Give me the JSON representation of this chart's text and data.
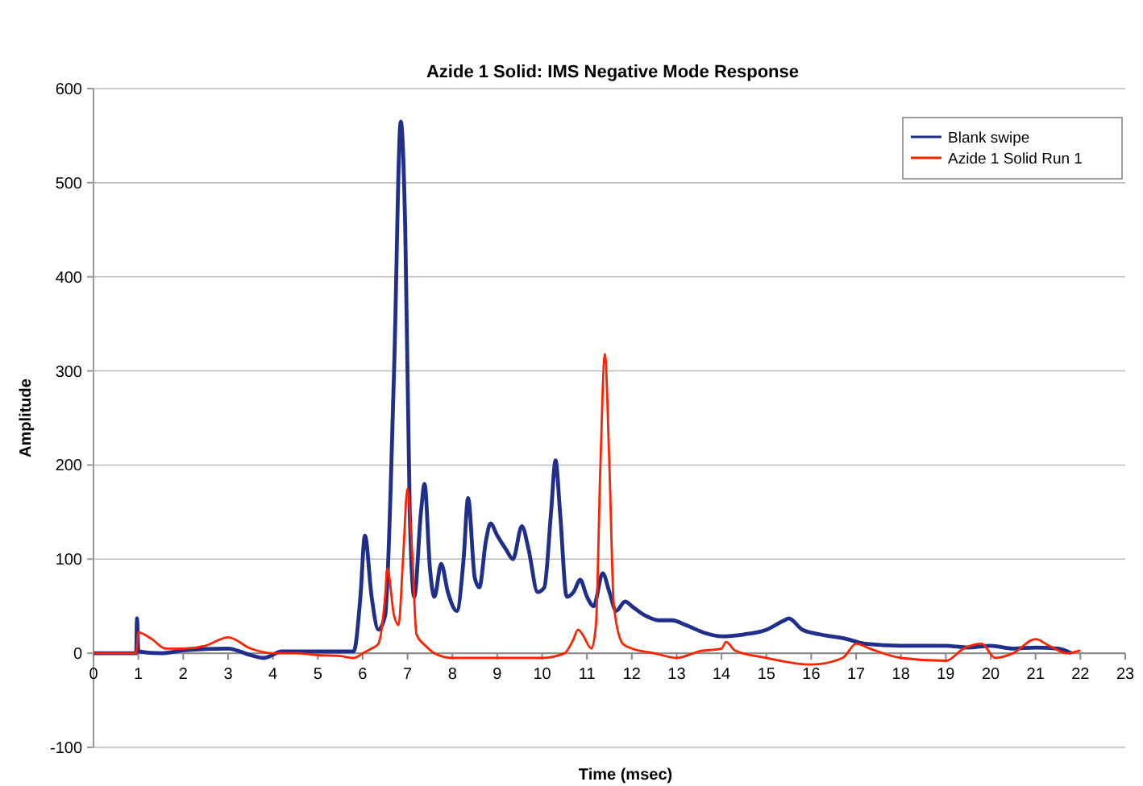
{
  "chart_data": {
    "type": "line",
    "title": "Azide 1 Solid: IMS Negative Mode Response",
    "xlabel": "Time (msec)",
    "ylabel": "Amplitude",
    "xlim": [
      0,
      23
    ],
    "ylim": [
      -100,
      600
    ],
    "xticks": [
      0,
      1,
      2,
      3,
      4,
      5,
      6,
      7,
      8,
      9,
      10,
      11,
      12,
      13,
      14,
      15,
      16,
      17,
      18,
      19,
      20,
      21,
      22,
      23
    ],
    "yticks": [
      -100,
      0,
      100,
      200,
      300,
      400,
      500,
      600
    ],
    "grid": "y",
    "legend": "top right",
    "marker": "none",
    "line_style": "solid",
    "series": [
      {
        "name": "Blank swipe",
        "color": "#1f2f8a",
        "x": [
          0,
          0.95,
          0.97,
          1.0,
          1.5,
          2,
          3,
          3.5,
          3.8,
          4.2,
          5,
          5.8,
          5.95,
          6.05,
          6.2,
          6.35,
          6.5,
          6.7,
          6.85,
          6.95,
          7.05,
          7.15,
          7.3,
          7.38,
          7.5,
          7.6,
          7.75,
          7.9,
          8.1,
          8.25,
          8.35,
          8.5,
          8.6,
          8.75,
          8.85,
          9.0,
          9.2,
          9.35,
          9.55,
          9.7,
          9.9,
          10.05,
          10.2,
          10.3,
          10.4,
          10.55,
          10.7,
          10.85,
          11.0,
          11.15,
          11.35,
          11.5,
          11.65,
          11.85,
          12,
          12.3,
          12.6,
          12.9,
          13.2,
          13.6,
          14,
          14.5,
          15,
          15.4,
          15.5,
          15.8,
          16.2,
          16.8,
          17.2,
          18,
          19,
          19.5,
          20,
          20.5,
          21,
          21.5,
          21.8
        ],
        "values": [
          0,
          0,
          37,
          2,
          0,
          3,
          5,
          -2,
          -5,
          2,
          2,
          2,
          60,
          125,
          60,
          25,
          40,
          300,
          565,
          450,
          150,
          60,
          150,
          180,
          90,
          60,
          95,
          65,
          45,
          100,
          165,
          80,
          70,
          120,
          138,
          125,
          110,
          100,
          135,
          110,
          65,
          70,
          150,
          205,
          150,
          60,
          65,
          78,
          60,
          50,
          85,
          65,
          45,
          55,
          50,
          40,
          35,
          35,
          30,
          22,
          18,
          20,
          25,
          35,
          37,
          25,
          20,
          15,
          10,
          8,
          8,
          6,
          8,
          5,
          6,
          5,
          0
        ]
      },
      {
        "name": "Azide 1 Solid Run 1",
        "color": "#ff2200",
        "x": [
          0,
          0.95,
          1.0,
          1.3,
          1.6,
          2,
          2.5,
          3.0,
          3.5,
          4,
          4.5,
          5,
          5.5,
          5.8,
          6,
          6.2,
          6.35,
          6.5,
          6.55,
          6.7,
          6.8,
          6.9,
          7.0,
          7.1,
          7.2,
          7.4,
          7.6,
          8,
          9,
          10,
          10.5,
          10.7,
          10.8,
          10.9,
          11.1,
          11.2,
          11.3,
          11.4,
          11.5,
          11.6,
          11.8,
          12,
          12.5,
          13,
          13.5,
          14,
          14.1,
          14.3,
          15,
          16,
          16.7,
          17.0,
          17.3,
          18,
          19,
          19.4,
          19.8,
          20.1,
          20.5,
          21,
          21.3,
          21.7,
          22
        ],
        "values": [
          0,
          0,
          22,
          15,
          5,
          5,
          8,
          17,
          5,
          0,
          0,
          -2,
          -3,
          -5,
          0,
          5,
          10,
          60,
          90,
          40,
          30,
          100,
          175,
          110,
          20,
          8,
          0,
          -5,
          -5,
          -5,
          0,
          15,
          25,
          20,
          5,
          30,
          200,
          318,
          200,
          50,
          10,
          5,
          0,
          -5,
          2,
          5,
          12,
          3,
          -5,
          -12,
          -5,
          10,
          5,
          -5,
          -8,
          5,
          10,
          -5,
          0,
          15,
          8,
          0,
          3
        ]
      }
    ]
  }
}
